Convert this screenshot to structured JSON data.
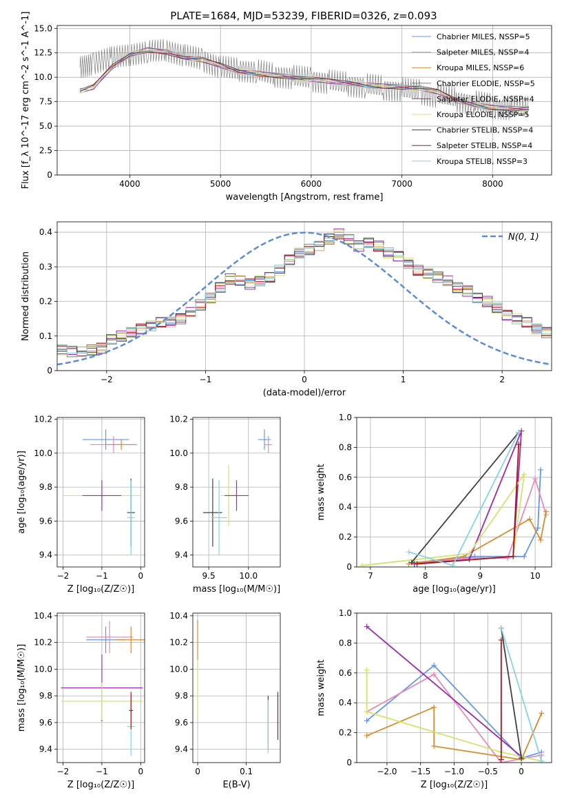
{
  "figure_title": "PLATE=1684, MJD=53239, FIBERID=0326, z=0.093",
  "colors": {
    "Chabrier MILES": "#6495ed",
    "Salpeter MILES": "#e88ab6",
    "Kroupa MILES": "#d88a2e",
    "Chabrier ELODIE": "#7f7f7f",
    "Salpeter ELODIE": "#9c27b0",
    "Kroupa ELODIE": "#d4e36b",
    "Chabrier STELIB": "#404040",
    "Salpeter STELIB": "#a01818",
    "Kroupa STELIB": "#86d4e0",
    "data": "#808080",
    "normal": "#5b8bd8",
    "orange": "#e87722",
    "green": "#7ab317"
  },
  "chart_data": [
    {
      "id": "spectrum",
      "type": "line",
      "title": "PLATE=1684, MJD=53239, FIBERID=0326, z=0.093",
      "xlabel": "wavelength [Angstrom, rest frame]",
      "ylabel": "Flux [f_λ 10^-17 erg cm^-2 s^-1 A^-1]",
      "xlim": [
        3200,
        8650
      ],
      "ylim": [
        0,
        15.3
      ],
      "xticks": [
        4000,
        5000,
        6000,
        7000,
        8000
      ],
      "yticks": [
        0.0,
        2.5,
        5.0,
        7.5,
        10.0,
        12.5,
        15.0
      ],
      "legend_position": "top-right",
      "legend": [
        "Chabrier MILES, N_SSP=5",
        "Salpeter MILES, N_SSP=4",
        "Kroupa MILES, N_SSP=6",
        "Chabrier ELODIE, N_SSP=5",
        "Salpeter ELODIE, N_SSP=4",
        "Kroupa ELODIE, N_SSP=5",
        "Chabrier STELIB, N_SSP=4",
        "Salpeter STELIB, N_SSP=4",
        "Kroupa STELIB, N_SSP=3"
      ],
      "data_series": {
        "name": "data",
        "x": [
          3450,
          3600,
          3800,
          4000,
          4200,
          4400,
          4600,
          4800,
          5000,
          5200,
          5400,
          5600,
          5800,
          6000,
          6200,
          6400,
          6600,
          6800,
          7000,
          7200,
          7400,
          7600,
          7800,
          8000,
          8200,
          8400
        ],
        "y": [
          11.0,
          11.4,
          12.0,
          12.3,
          12.6,
          12.8,
          12.2,
          11.8,
          11.0,
          10.8,
          10.6,
          10.2,
          10.0,
          9.8,
          9.5,
          9.3,
          9.1,
          8.9,
          8.7,
          8.5,
          8.1,
          7.7,
          7.4,
          7.0,
          6.9,
          6.8
        ]
      },
      "model_series": {
        "x": [
          3450,
          3600,
          3800,
          4000,
          4200,
          4400,
          4600,
          4800,
          5000,
          5200,
          5400,
          5600,
          5800,
          6000,
          6200,
          6400,
          6600,
          6800,
          7000,
          7200,
          7400,
          7600,
          7800,
          8000,
          8200,
          8400
        ],
        "y": [
          8.6,
          9.0,
          11.0,
          12.3,
          12.8,
          12.6,
          12.0,
          11.8,
          11.2,
          10.6,
          10.4,
          10.2,
          10.0,
          9.8,
          9.6,
          9.4,
          9.2,
          9.1,
          9.0,
          8.9,
          8.5,
          7.6,
          7.2,
          6.9,
          6.8,
          6.8
        ]
      }
    },
    {
      "id": "residuals",
      "type": "line",
      "xlabel": "(data-model)/error",
      "ylabel": "Normed distribution",
      "xlim": [
        -2.5,
        2.5
      ],
      "ylim": [
        0,
        0.43
      ],
      "xticks": [
        -2,
        -1,
        0,
        1,
        2
      ],
      "yticks": [
        0.0,
        0.1,
        0.2,
        0.3,
        0.4
      ],
      "legend_position": "top-right",
      "legend": [
        "N(0, 1)"
      ],
      "histogram": {
        "bin_width": 0.1,
        "bin_start": -2.5,
        "values": [
          0.06,
          0.055,
          0.055,
          0.06,
          0.065,
          0.09,
          0.1,
          0.11,
          0.12,
          0.13,
          0.14,
          0.14,
          0.15,
          0.17,
          0.19,
          0.21,
          0.24,
          0.265,
          0.26,
          0.25,
          0.26,
          0.27,
          0.29,
          0.32,
          0.34,
          0.35,
          0.36,
          0.38,
          0.395,
          0.38,
          0.36,
          0.37,
          0.36,
          0.34,
          0.33,
          0.31,
          0.29,
          0.28,
          0.27,
          0.26,
          0.24,
          0.23,
          0.21,
          0.2,
          0.18,
          0.16,
          0.15,
          0.14,
          0.12,
          0.11,
          0.1,
          0.09,
          0.085,
          0.08,
          0.075,
          0.07,
          0.065,
          0.06,
          0.055,
          0.05
        ]
      }
    },
    {
      "id": "age-vs-Z",
      "type": "scatter",
      "xlabel": "Z [log10(Z/Z☉)]",
      "ylabel": "age  [log10(age/yr)]",
      "xlim": [
        -2.15,
        0.1
      ],
      "ylim": [
        9.33,
        10.21
      ],
      "xticks": [
        -2,
        -1,
        0
      ],
      "yticks": [
        9.4,
        9.6,
        9.8,
        10.0,
        10.2
      ],
      "crosses": [
        {
          "x": -0.9,
          "y": 10.08,
          "xerr": 0.6,
          "yerr": 0.06,
          "series": "Chabrier MILES"
        },
        {
          "x": -0.7,
          "y": 10.05,
          "xerr": 0.6,
          "yerr": 0.05,
          "series": "Salpeter MILES"
        },
        {
          "x": -0.5,
          "y": 10.05,
          "xerr": 0.4,
          "yerr": 0.03,
          "series": "Kroupa MILES"
        },
        {
          "x": -1.0,
          "y": 9.75,
          "xerr": 1.0,
          "yerr": 0.08,
          "series": "Kroupa ELODIE"
        },
        {
          "x": -1.0,
          "y": 9.75,
          "xerr": 0.5,
          "yerr": 0.09,
          "series": "Salpeter ELODIE"
        },
        {
          "x": -0.25,
          "y": 9.65,
          "xerr": 0.1,
          "yerr": 0.2,
          "series": "Chabrier STELIB"
        },
        {
          "x": -0.25,
          "y": 9.62,
          "xerr": 0.1,
          "yerr": 0.22,
          "series": "Kroupa STELIB"
        }
      ]
    },
    {
      "id": "age-vs-mass",
      "type": "scatter",
      "xlabel": "mass [log10(M/M☉)]",
      "ylabel": "",
      "xlim": [
        9.3,
        10.4
      ],
      "ylim": [
        9.33,
        10.21
      ],
      "xticks": [
        9.5,
        10.0
      ],
      "yticks": [
        9.4,
        9.6,
        9.8,
        10.0,
        10.2
      ],
      "crosses": [
        {
          "x": 10.2,
          "y": 10.08,
          "xerr": 0.08,
          "yerr": 0.06,
          "series": "Chabrier MILES"
        },
        {
          "x": 10.25,
          "y": 10.05,
          "xerr": 0.05,
          "yerr": 0.05,
          "series": "Salpeter MILES"
        },
        {
          "x": 9.75,
          "y": 9.75,
          "xerr": 0.1,
          "yerr": 0.18,
          "series": "Kroupa ELODIE"
        },
        {
          "x": 9.85,
          "y": 9.75,
          "xerr": 0.15,
          "yerr": 0.09,
          "series": "Salpeter ELODIE"
        },
        {
          "x": 9.55,
          "y": 9.65,
          "xerr": 0.12,
          "yerr": 0.2,
          "series": "Chabrier STELIB"
        },
        {
          "x": 9.63,
          "y": 9.62,
          "xerr": 0.1,
          "yerr": 0.22,
          "series": "Kroupa STELIB"
        }
      ]
    },
    {
      "id": "mass-weight-vs-age",
      "type": "line",
      "xlabel": "age  [log10(age/yr)]",
      "ylabel": "mass weight",
      "xlim": [
        6.75,
        10.3
      ],
      "ylim": [
        0,
        1.0
      ],
      "xticks": [
        7,
        8,
        9,
        10
      ],
      "yticks": [
        0.0,
        0.2,
        0.4,
        0.6,
        0.8,
        1.0
      ],
      "series": [
        {
          "name": "Chabrier MILES",
          "x": [
            7.8,
            8.9,
            9.8,
            10.05,
            10.1
          ],
          "y": [
            0.02,
            0.07,
            0.07,
            0.26,
            0.65
          ]
        },
        {
          "name": "Salpeter MILES",
          "x": [
            7.8,
            8.8,
            9.5,
            10.0,
            10.2
          ],
          "y": [
            0.03,
            0.06,
            0.06,
            0.59,
            0.35
          ]
        },
        {
          "name": "Kroupa MILES",
          "x": [
            7.7,
            8.7,
            9.9,
            10.1,
            10.2
          ],
          "y": [
            0.02,
            0.07,
            0.32,
            0.18,
            0.37
          ]
        },
        {
          "name": "Salpeter ELODIE",
          "x": [
            7.8,
            8.8,
            9.75,
            9.6
          ],
          "y": [
            0.02,
            0.05,
            0.91,
            0.07
          ]
        },
        {
          "name": "Kroupa ELODIE",
          "x": [
            6.85,
            8.8,
            9.8,
            9.6
          ],
          "y": [
            0.01,
            0.09,
            0.62,
            0.07
          ]
        },
        {
          "name": "Chabrier STELIB",
          "x": [
            7.75,
            9.7
          ],
          "y": [
            0.03,
            0.9
          ]
        },
        {
          "name": "Salpeter STELIB",
          "x": [
            7.85,
            9.6,
            9.7
          ],
          "y": [
            0.02,
            0.07,
            0.82
          ]
        },
        {
          "name": "Kroupa STELIB",
          "x": [
            7.7,
            8.5,
            9.7
          ],
          "y": [
            0.1,
            0.01,
            0.9
          ]
        }
      ]
    },
    {
      "id": "mass-vs-Z",
      "type": "scatter",
      "xlabel": "Z [log10(Z/Z☉)]",
      "ylabel": "mass [log10(M/M☉)]",
      "xlim": [
        -2.15,
        0.1
      ],
      "ylim": [
        9.3,
        10.42
      ],
      "xticks": [
        -2,
        -1,
        0
      ],
      "yticks": [
        9.4,
        9.6,
        9.8,
        10.0,
        10.2,
        10.4
      ],
      "crosses": [
        {
          "x": -0.9,
          "y": 10.22,
          "xerr": 0.5,
          "yerr": 0.1,
          "series": "Chabrier MILES"
        },
        {
          "x": -0.8,
          "y": 10.24,
          "xerr": 0.6,
          "yerr": 0.12,
          "series": "Salpeter MILES"
        },
        {
          "x": -0.25,
          "y": 10.22,
          "xerr": 0.4,
          "yerr": 0.1,
          "series": "Kroupa MILES"
        },
        {
          "x": -1.0,
          "y": 9.86,
          "xerr": 1.05,
          "yerr": 0.25,
          "series": "Salpeter ELODIE"
        },
        {
          "x": -1.0,
          "y": 9.76,
          "xerr": 1.05,
          "yerr": 0.14,
          "series": "Kroupa ELODIE"
        },
        {
          "x": -0.25,
          "y": 9.57,
          "xerr": 0.1,
          "yerr": 0.22,
          "series": "Kroupa STELIB"
        },
        {
          "x": -0.25,
          "y": 9.69,
          "xerr": 0.05,
          "yerr": 0.14,
          "series": "Salpeter STELIB"
        }
      ]
    },
    {
      "id": "mass-vs-EBV",
      "type": "scatter",
      "xlabel": "E(B-V)",
      "ylabel": "",
      "xlim": [
        -0.01,
        0.17
      ],
      "ylim": [
        9.3,
        10.42
      ],
      "xticks": [
        0.0,
        0.1
      ],
      "yticks": [
        9.4,
        9.6,
        9.8,
        10.0,
        10.2,
        10.4
      ],
      "crosses": [
        {
          "x": 0.0,
          "y": 10.22,
          "xerr": 0.0,
          "yerr": 0.15,
          "series": "Kroupa MILES"
        },
        {
          "x": 0.0,
          "y": 9.85,
          "xerr": 0.0,
          "yerr": 0.22,
          "series": "Kroupa ELODIE"
        },
        {
          "x": 0.145,
          "y": 9.6,
          "xerr": 0.0,
          "yerr": 0.2,
          "series": "Chabrier STELIB"
        },
        {
          "x": 0.145,
          "y": 9.57,
          "xerr": 0.0,
          "yerr": 0.2,
          "series": "Kroupa STELIB"
        },
        {
          "x": 0.165,
          "y": 9.65,
          "xerr": 0.0,
          "yerr": 0.18,
          "series": "Salpeter STELIB"
        }
      ]
    },
    {
      "id": "mass-weight-vs-Z",
      "type": "line",
      "xlabel": "Z [log10(Z/Z☉)]",
      "ylabel": "mass weight",
      "xlim": [
        -2.45,
        0.45
      ],
      "ylim": [
        0,
        1.0
      ],
      "xticks": [
        -2.0,
        -1.5,
        -1.0,
        -0.5,
        0.0
      ],
      "yticks": [
        0.0,
        0.2,
        0.4,
        0.6,
        0.8,
        1.0
      ],
      "series": [
        {
          "name": "Chabrier MILES",
          "x": [
            -2.3,
            -1.3,
            0.0,
            0.3
          ],
          "y": [
            0.28,
            0.65,
            0.03,
            0.07
          ]
        },
        {
          "name": "Salpeter MILES",
          "x": [
            -2.3,
            -1.3,
            -0.3,
            0.3
          ],
          "y": [
            0.34,
            0.59,
            0.0,
            0.05
          ]
        },
        {
          "name": "Kroupa MILES",
          "x": [
            -2.3,
            -1.3,
            -1.3,
            0.0,
            0.3
          ],
          "y": [
            0.18,
            0.37,
            0.11,
            0.02,
            0.33
          ]
        },
        {
          "name": "Salpeter ELODIE",
          "x": [
            -2.3,
            0.0
          ],
          "y": [
            0.91,
            0.04
          ]
        },
        {
          "name": "Kroupa ELODIE",
          "x": [
            -2.3,
            -2.3,
            -0.3,
            0.3
          ],
          "y": [
            0.62,
            0.34,
            0.07,
            0.01
          ]
        },
        {
          "name": "Chabrier STELIB",
          "x": [
            -0.3,
            0.0
          ],
          "y": [
            0.9,
            0.03
          ]
        },
        {
          "name": "Salpeter STELIB",
          "x": [
            -0.3,
            -0.3
          ],
          "y": [
            0.82,
            0.02
          ]
        },
        {
          "name": "Kroupa STELIB",
          "x": [
            -0.3,
            0.3
          ],
          "y": [
            0.9,
            0.01
          ]
        }
      ]
    }
  ]
}
